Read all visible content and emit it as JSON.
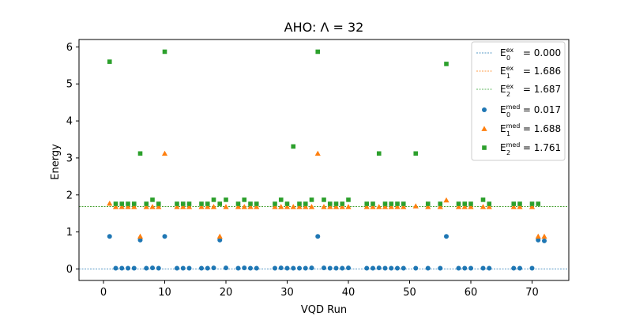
{
  "chart_data": {
    "type": "scatter",
    "title": "AHO: Λ = 32",
    "xlabel": "VQD Run",
    "ylabel": "Energy",
    "xlim": [
      -4,
      76
    ],
    "ylim": [
      -0.31,
      6.2
    ],
    "xticks": [
      0,
      10,
      20,
      30,
      40,
      50,
      60,
      70
    ],
    "yticks": [
      0,
      1,
      2,
      3,
      4,
      5,
      6
    ],
    "grid": false,
    "legend_position": "top-right",
    "reference_lines": [
      {
        "label_base": "E",
        "sub": "0",
        "sup": "ex",
        "label_value": " = 0.000",
        "y": 0.0,
        "color": "#1f77b4",
        "style": "dashed"
      },
      {
        "label_base": "E",
        "sub": "1",
        "sup": "ex",
        "label_value": " = 1.686",
        "y": 1.686,
        "color": "#ff7f0e",
        "style": "dashed"
      },
      {
        "label_base": "E",
        "sub": "2",
        "sup": "ex",
        "label_value": " = 1.687",
        "y": 1.687,
        "color": "#2ca02c",
        "style": "dashed"
      }
    ],
    "series": [
      {
        "label_base": "E",
        "sub": "0",
        "sup": "med",
        "label_value": " = 0.017",
        "marker": "circle",
        "color": "#1f77b4",
        "points": [
          [
            1,
            0.88
          ],
          [
            2,
            0.02
          ],
          [
            3,
            0.02
          ],
          [
            4,
            0.02
          ],
          [
            5,
            0.02
          ],
          [
            6,
            0.78
          ],
          [
            7,
            0.02
          ],
          [
            8,
            0.03
          ],
          [
            9,
            0.02
          ],
          [
            10,
            0.88
          ],
          [
            12,
            0.02
          ],
          [
            13,
            0.02
          ],
          [
            14,
            0.02
          ],
          [
            16,
            0.02
          ],
          [
            17,
            0.02
          ],
          [
            18,
            0.03
          ],
          [
            19,
            0.78
          ],
          [
            20,
            0.03
          ],
          [
            22,
            0.02
          ],
          [
            23,
            0.03
          ],
          [
            24,
            0.02
          ],
          [
            25,
            0.02
          ],
          [
            28,
            0.02
          ],
          [
            29,
            0.03
          ],
          [
            30,
            0.02
          ],
          [
            31,
            0.02
          ],
          [
            32,
            0.02
          ],
          [
            33,
            0.02
          ],
          [
            34,
            0.03
          ],
          [
            35,
            0.88
          ],
          [
            36,
            0.03
          ],
          [
            37,
            0.02
          ],
          [
            38,
            0.02
          ],
          [
            39,
            0.02
          ],
          [
            40,
            0.03
          ],
          [
            43,
            0.02
          ],
          [
            44,
            0.02
          ],
          [
            45,
            0.03
          ],
          [
            46,
            0.02
          ],
          [
            47,
            0.02
          ],
          [
            48,
            0.02
          ],
          [
            49,
            0.02
          ],
          [
            51,
            0.02
          ],
          [
            53,
            0.02
          ],
          [
            55,
            0.02
          ],
          [
            56,
            0.88
          ],
          [
            58,
            0.02
          ],
          [
            59,
            0.02
          ],
          [
            60,
            0.02
          ],
          [
            62,
            0.02
          ],
          [
            63,
            0.02
          ],
          [
            67,
            0.02
          ],
          [
            68,
            0.02
          ],
          [
            70,
            0.02
          ],
          [
            71,
            0.78
          ],
          [
            72,
            0.76
          ]
        ]
      },
      {
        "label_base": "E",
        "sub": "1",
        "sup": "med",
        "label_value": " = 1.688",
        "marker": "triangle",
        "color": "#ff7f0e",
        "points": [
          [
            1,
            1.77
          ],
          [
            2,
            1.68
          ],
          [
            3,
            1.68
          ],
          [
            4,
            1.68
          ],
          [
            5,
            1.68
          ],
          [
            6,
            0.88
          ],
          [
            7,
            1.68
          ],
          [
            8,
            1.68
          ],
          [
            9,
            1.68
          ],
          [
            10,
            3.12
          ],
          [
            12,
            1.68
          ],
          [
            13,
            1.68
          ],
          [
            14,
            1.68
          ],
          [
            16,
            1.68
          ],
          [
            17,
            1.68
          ],
          [
            18,
            1.68
          ],
          [
            19,
            0.88
          ],
          [
            20,
            1.68
          ],
          [
            22,
            1.68
          ],
          [
            23,
            1.68
          ],
          [
            24,
            1.68
          ],
          [
            25,
            1.68
          ],
          [
            28,
            1.68
          ],
          [
            29,
            1.68
          ],
          [
            30,
            1.68
          ],
          [
            31,
            1.68
          ],
          [
            32,
            1.68
          ],
          [
            33,
            1.68
          ],
          [
            34,
            1.68
          ],
          [
            35,
            3.12
          ],
          [
            36,
            1.68
          ],
          [
            37,
            1.68
          ],
          [
            38,
            1.68
          ],
          [
            39,
            1.68
          ],
          [
            40,
            1.68
          ],
          [
            43,
            1.68
          ],
          [
            44,
            1.68
          ],
          [
            45,
            1.68
          ],
          [
            46,
            1.68
          ],
          [
            47,
            1.68
          ],
          [
            48,
            1.68
          ],
          [
            49,
            1.68
          ],
          [
            51,
            1.7
          ],
          [
            53,
            1.68
          ],
          [
            55,
            1.68
          ],
          [
            56,
            1.86
          ],
          [
            58,
            1.68
          ],
          [
            59,
            1.68
          ],
          [
            60,
            1.68
          ],
          [
            62,
            1.68
          ],
          [
            63,
            1.68
          ],
          [
            67,
            1.68
          ],
          [
            68,
            1.68
          ],
          [
            70,
            1.68
          ],
          [
            71,
            0.88
          ],
          [
            72,
            0.88
          ]
        ]
      },
      {
        "label_base": "E",
        "sub": "2",
        "sup": "med",
        "label_value": " = 1.761",
        "marker": "square",
        "color": "#2ca02c",
        "points": [
          [
            1,
            5.6
          ],
          [
            2,
            1.76
          ],
          [
            3,
            1.76
          ],
          [
            4,
            1.76
          ],
          [
            5,
            1.76
          ],
          [
            6,
            3.12
          ],
          [
            7,
            1.76
          ],
          [
            8,
            1.87
          ],
          [
            9,
            1.76
          ],
          [
            10,
            5.87
          ],
          [
            12,
            1.76
          ],
          [
            13,
            1.76
          ],
          [
            14,
            1.76
          ],
          [
            16,
            1.76
          ],
          [
            17,
            1.76
          ],
          [
            18,
            1.87
          ],
          [
            19,
            1.76
          ],
          [
            20,
            1.87
          ],
          [
            22,
            1.76
          ],
          [
            23,
            1.87
          ],
          [
            24,
            1.76
          ],
          [
            25,
            1.76
          ],
          [
            28,
            1.76
          ],
          [
            29,
            1.87
          ],
          [
            30,
            1.76
          ],
          [
            31,
            3.31
          ],
          [
            32,
            1.76
          ],
          [
            33,
            1.76
          ],
          [
            34,
            1.87
          ],
          [
            35,
            5.87
          ],
          [
            36,
            1.87
          ],
          [
            37,
            1.76
          ],
          [
            38,
            1.76
          ],
          [
            39,
            1.76
          ],
          [
            40,
            1.87
          ],
          [
            43,
            1.76
          ],
          [
            44,
            1.76
          ],
          [
            45,
            3.12
          ],
          [
            46,
            1.76
          ],
          [
            47,
            1.76
          ],
          [
            48,
            1.76
          ],
          [
            49,
            1.76
          ],
          [
            51,
            3.12
          ],
          [
            53,
            1.76
          ],
          [
            55,
            1.76
          ],
          [
            56,
            5.54
          ],
          [
            58,
            1.76
          ],
          [
            59,
            1.76
          ],
          [
            60,
            1.76
          ],
          [
            62,
            1.87
          ],
          [
            63,
            1.76
          ],
          [
            67,
            1.76
          ],
          [
            68,
            1.76
          ],
          [
            70,
            1.76
          ],
          [
            71,
            1.76
          ]
        ]
      }
    ]
  }
}
